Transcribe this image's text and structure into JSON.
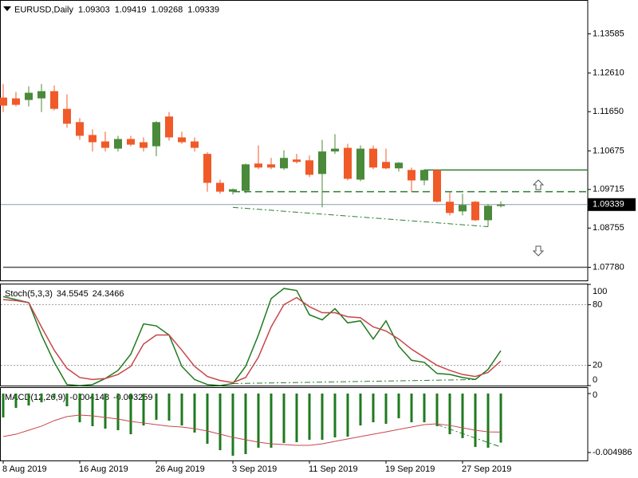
{
  "chart_data": [
    {
      "type": "candlestick",
      "title": "EURUSD,Daily",
      "categories": [
        "8 Aug 2019",
        null,
        null,
        null,
        null,
        null,
        "16 Aug 2019",
        null,
        null,
        null,
        null,
        null,
        "26 Aug 2019",
        null,
        null,
        null,
        null,
        null,
        "3 Sep 2019",
        null,
        null,
        null,
        null,
        null,
        "11 Sep 2019",
        null,
        null,
        null,
        null,
        null,
        "19 Sep 2019",
        null,
        null,
        null,
        null,
        null,
        "27 Sep 2019",
        null,
        null,
        null
      ],
      "open": [
        1.12,
        1.1198,
        1.1194,
        1.1198,
        1.1216,
        1.1172,
        1.1139,
        1.1107,
        1.1091,
        1.1073,
        1.1097,
        1.1089,
        1.1079,
        1.1153,
        1.1101,
        1.1091,
        1.106,
        1.0988,
        1.0966,
        1.0968,
        1.1036,
        1.1034,
        1.1024,
        1.1046,
        1.1044,
        1.101,
        1.1066,
        1.1075,
        1.0996,
        1.1073,
        1.104,
        1.1024,
        1.102,
        1.0994,
        1.102,
        1.0941,
        1.0917,
        1.0941,
        1.0895,
        1.09303
      ],
      "high": [
        1.1234,
        1.1214,
        1.1228,
        1.1234,
        1.123,
        1.1208,
        1.1149,
        1.1121,
        1.1115,
        1.1105,
        1.1105,
        1.1101,
        1.1141,
        1.1164,
        1.1115,
        1.1101,
        1.1064,
        1.0996,
        1.0974,
        1.1036,
        1.1081,
        1.105,
        1.1069,
        1.106,
        1.1056,
        1.1095,
        1.1109,
        1.1085,
        1.1081,
        1.1081,
        1.1073,
        1.104,
        1.1026,
        1.1022,
        1.1022,
        1.0966,
        1.0961,
        1.0943,
        1.0935,
        1.09419
      ],
      "low": [
        1.1164,
        1.1178,
        1.1178,
        1.1164,
        1.1168,
        1.1125,
        1.1095,
        1.1066,
        1.1066,
        1.1066,
        1.1079,
        1.1066,
        1.1054,
        1.1093,
        1.1085,
        1.1066,
        1.0966,
        1.0961,
        1.0959,
        1.0962,
        1.1022,
        1.1022,
        1.102,
        1.1036,
        1.1002,
        1.0927,
        1.106,
        1.0994,
        1.0992,
        1.1022,
        1.1022,
        1.1016,
        1.0966,
        1.0982,
        1.0939,
        1.0907,
        1.0907,
        1.0893,
        1.0879,
        1.09268
      ],
      "close": [
        1.118,
        1.1182,
        1.1212,
        1.1216,
        1.1172,
        1.1135,
        1.1105,
        1.1089,
        1.1075,
        1.1097,
        1.1083,
        1.1075,
        1.1139,
        1.1101,
        1.1089,
        1.1075,
        1.0988,
        1.0966,
        1.0972,
        1.1034,
        1.1026,
        1.1026,
        1.105,
        1.104,
        1.1008,
        1.1066,
        1.1073,
        1.0998,
        1.1073,
        1.1026,
        1.1024,
        1.1038,
        1.0994,
        1.102,
        1.0941,
        1.0913,
        1.0933,
        1.0895,
        1.0931,
        1.09339
      ],
      "up_color": "#4a8a3a",
      "down_color": "#f05a28",
      "ylim": [
        1.07443,
        1.14417
      ],
      "yticks": [
        1.13585,
        {
          "value": 1.1261,
          "label": "1.12610"
        },
        {
          "value": 1.1165,
          "label": "1.11650"
        },
        1.10675,
        1.09715,
        1.08755,
        {
          "value": 1.0778,
          "label": "1.07780"
        }
      ],
      "grid": false,
      "hlines": [
        {
          "value": 1.102,
          "from": 33,
          "color": "#2e7d32",
          "dash": "solid"
        },
        {
          "value": 1.0966,
          "from": 18,
          "color": "#2e7d32",
          "dash": "dashed"
        },
        {
          "value": 1.0778,
          "from": 0,
          "color": "#555555",
          "dash": "solid"
        }
      ],
      "trendlines": [
        {
          "x": [
            18,
            38
          ],
          "y": [
            1.0927,
            1.0879
          ],
          "color": "#2e7d32"
        }
      ]
    },
    {
      "type": "line",
      "title": "Stoch(5,3,3)",
      "series": [
        {
          "color": "#1f7a1f",
          "values": [
            88,
            85,
            82,
            50,
            23,
            1,
            0,
            1,
            7,
            15,
            31,
            61,
            59,
            50,
            19,
            6,
            1,
            0,
            2,
            19,
            50,
            86,
            96,
            94,
            70,
            65,
            76,
            62,
            64,
            46,
            64,
            39,
            25,
            23,
            12,
            11,
            8,
            6,
            16,
            34.5545
          ]
        },
        {
          "color": "#c8464b",
          "values": [
            85,
            84,
            82,
            58,
            35,
            17,
            8,
            6,
            7,
            11,
            19,
            41,
            50,
            50,
            35,
            19,
            9,
            5,
            3,
            8,
            28,
            58,
            80,
            87,
            78,
            72,
            72,
            68,
            67,
            58,
            54,
            46,
            36,
            28,
            20,
            15,
            11,
            9,
            13,
            24.3466
          ]
        }
      ],
      "ylim": [
        0,
        100
      ],
      "yticks": [
        100,
        80,
        20,
        0
      ],
      "grid": true,
      "trendlines": [
        {
          "x": [
            18,
            37
          ],
          "y": [
            2,
            6
          ],
          "color": "#2e7d32"
        }
      ]
    },
    {
      "type": "combo",
      "title": "MACD(12,26,9)",
      "series": [
        {
          "kind": "bar",
          "color": "#1f7a1f",
          "values": [
            -0.00202,
            -0.00121,
            -0.00101,
            -0.00074,
            -0.0004,
            -0.00108,
            -0.00243,
            -0.00276,
            -0.00297,
            -0.0031,
            -0.00344,
            -0.0027,
            -0.00222,
            -0.00229,
            -0.0027,
            -0.0033,
            -0.00425,
            -0.00479,
            -0.00526,
            -0.00512,
            -0.00458,
            -0.00458,
            -0.00418,
            -0.00411,
            -0.00391,
            -0.00391,
            -0.00371,
            -0.00364,
            -0.0027,
            -0.00243,
            -0.00256,
            -0.00209,
            -0.00243,
            -0.00243,
            -0.00276,
            -0.00344,
            -0.00377,
            -0.00452,
            -0.00458,
            -0.004148
          ]
        },
        {
          "kind": "line",
          "color": "#c8464b",
          "values": [
            -0.00364,
            -0.00344,
            -0.0031,
            -0.00276,
            -0.00229,
            -0.00195,
            -0.00182,
            -0.00189,
            -0.00202,
            -0.00216,
            -0.00236,
            -0.00249,
            -0.00263,
            -0.00276,
            -0.00283,
            -0.00297,
            -0.00317,
            -0.00344,
            -0.00371,
            -0.00391,
            -0.00411,
            -0.00425,
            -0.00431,
            -0.00438,
            -0.00438,
            -0.00425,
            -0.00404,
            -0.00384,
            -0.00364,
            -0.00344,
            -0.00324,
            -0.00303,
            -0.00283,
            -0.00263,
            -0.00256,
            -0.0027,
            -0.0029,
            -0.0031,
            -0.00324,
            -0.003259
          ]
        }
      ],
      "ylim": [
        -0.00566,
        0.00047
      ],
      "yticks": [
        0,
        -0.004986
      ],
      "grid": false,
      "trendlines": [
        {
          "x": [
            34,
            39
          ],
          "y": [
            -0.00263,
            -0.00452
          ],
          "color": "#2e7d32"
        }
      ]
    }
  ]
}
